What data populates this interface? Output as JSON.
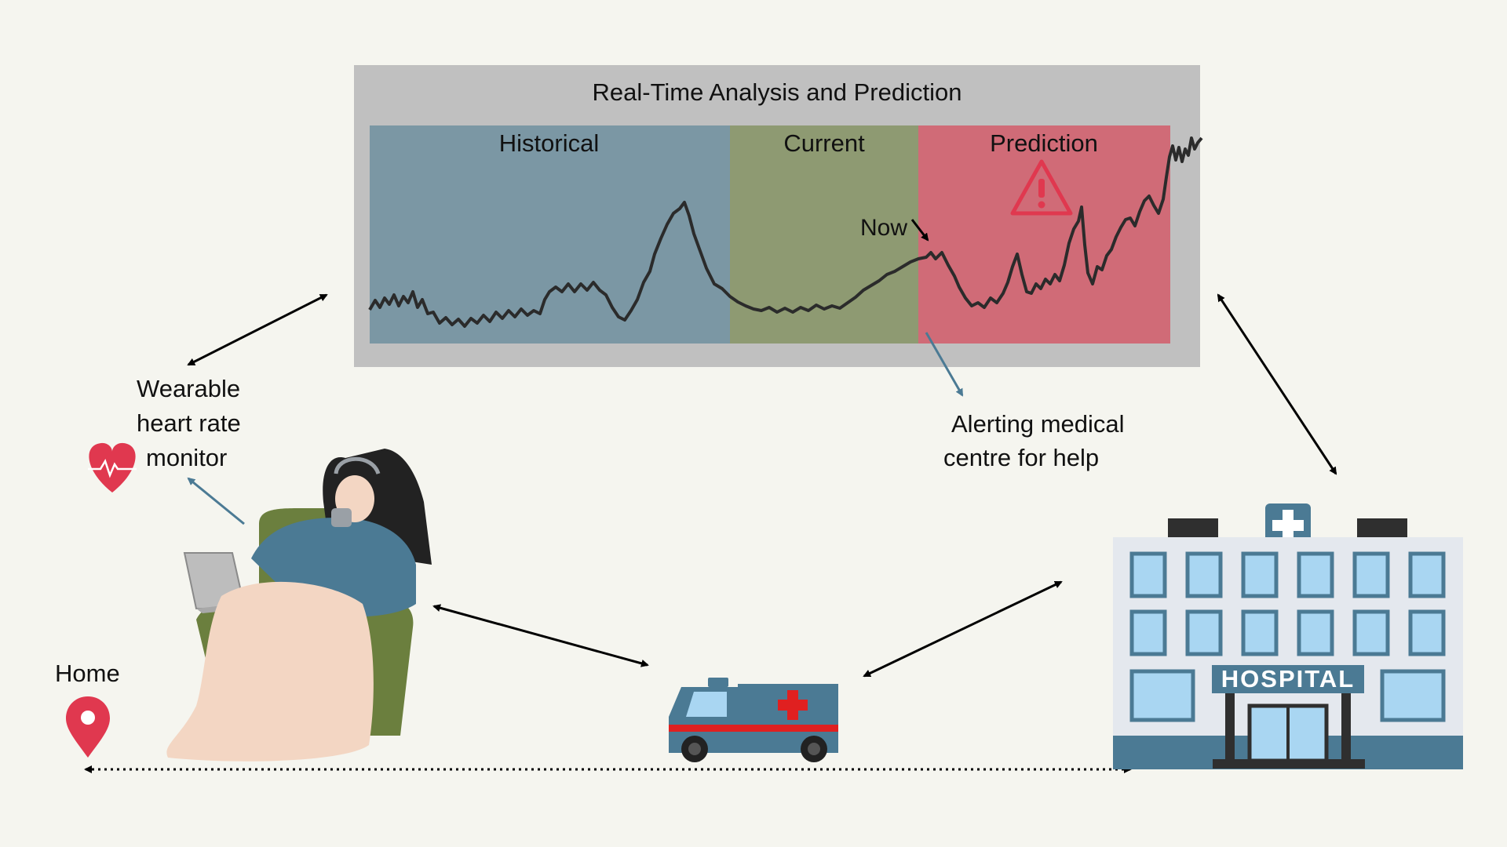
{
  "panel": {
    "title": "Real-Time Analysis and Prediction",
    "segments": {
      "historical": "Historical",
      "current": "Current",
      "prediction": "Prediction"
    },
    "now_label": "Now"
  },
  "labels": {
    "wearable": [
      "Wearable",
      "heart rate",
      "monitor"
    ],
    "alert": [
      "Alerting medical",
      "centre for help"
    ],
    "home": "Home",
    "hospital": "HOSPITAL"
  },
  "colors": {
    "background": "#f5f5ef",
    "panel": "#c0c0c0",
    "historical": "#7b97a4",
    "current": "#8e9a72",
    "prediction": "#d06b77",
    "alert_red": "#e0384f",
    "ambulance_blue": "#4b7a94",
    "hospital_window": "#a9d6f2",
    "armchair": "#6b7f3e",
    "blanket": "#f3d6c3"
  },
  "icons": [
    "heart-pulse-icon",
    "warning-icon",
    "map-pin-icon",
    "ambulance-icon",
    "hospital-icon"
  ]
}
